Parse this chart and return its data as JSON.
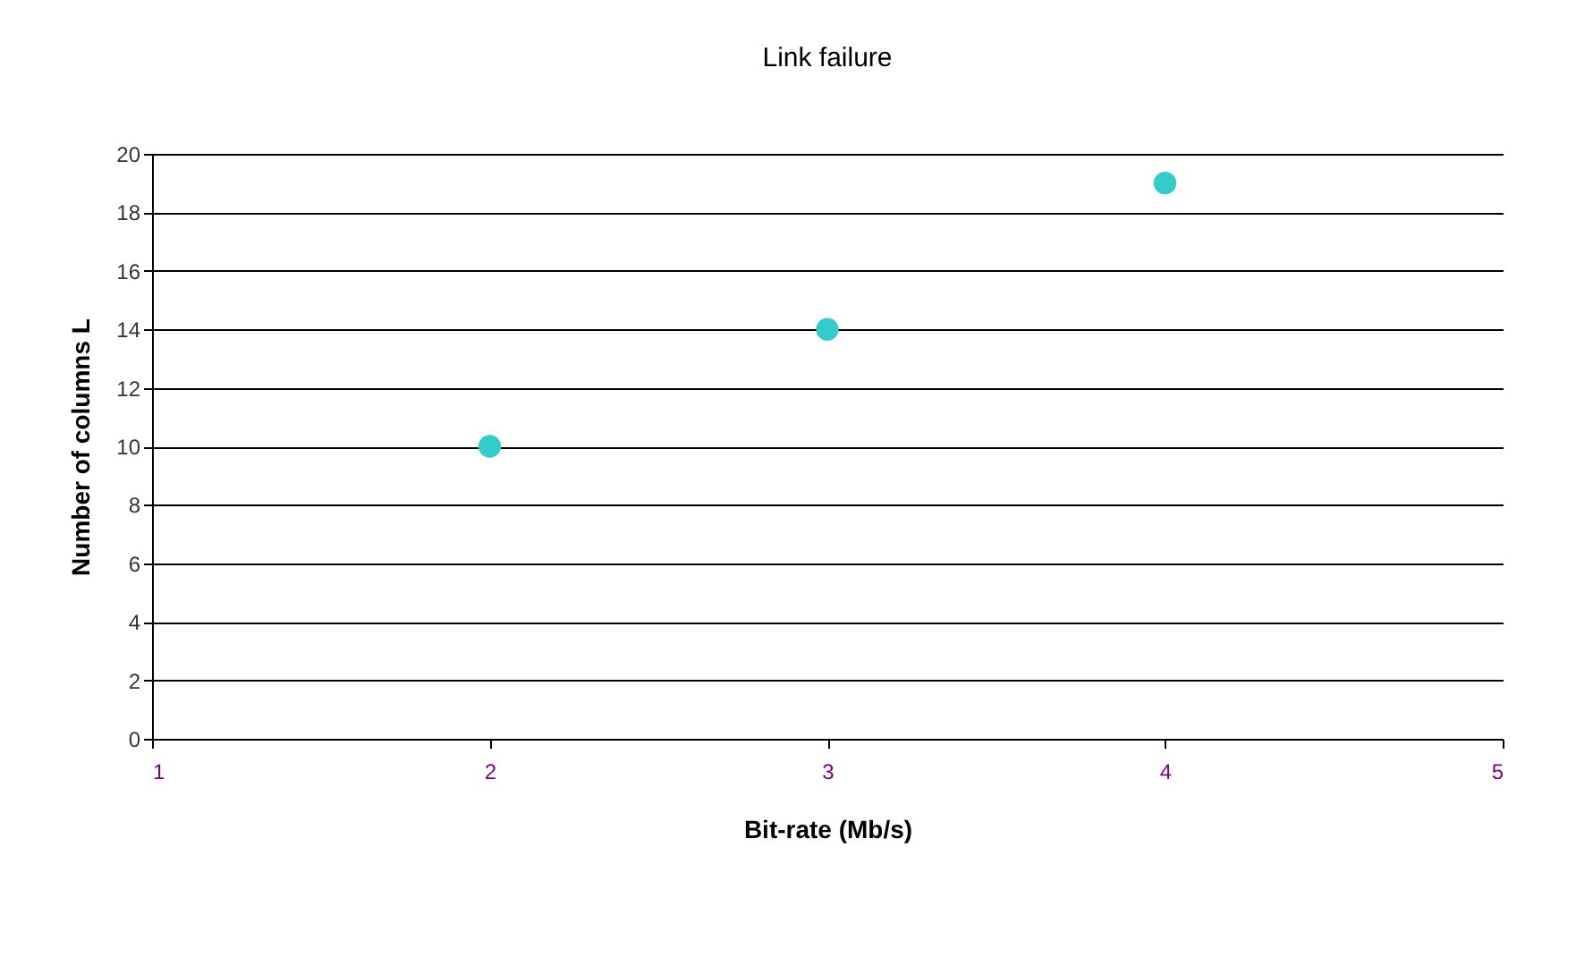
{
  "chart_data": {
    "type": "scatter",
    "title": "Link failure",
    "xlabel": "Bit-rate (Mb/s)",
    "ylabel": "Number of columns L",
    "x": [
      2,
      3,
      4
    ],
    "series": [
      {
        "color": "#33cccc",
        "values": [
          10,
          14,
          19
        ]
      }
    ],
    "xlim": [
      1,
      5
    ],
    "xticks": [
      1,
      2,
      3,
      4,
      5
    ],
    "ylim": [
      0,
      20
    ],
    "yticks": [
      0,
      2,
      4,
      6,
      8,
      10,
      12,
      14,
      16,
      18,
      20
    ],
    "grid": "y"
  }
}
